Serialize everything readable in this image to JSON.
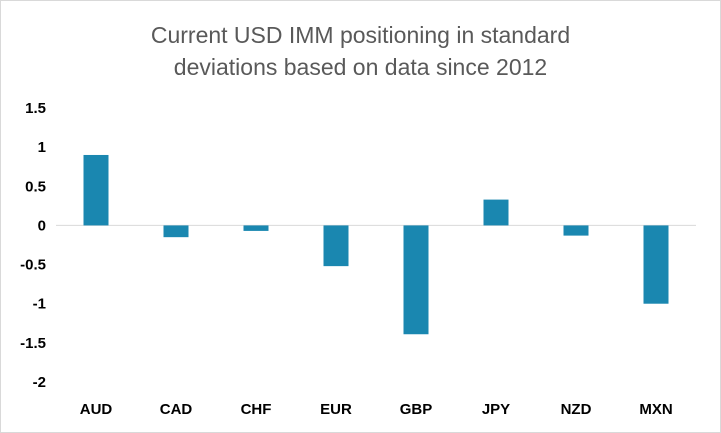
{
  "chart_data": {
    "type": "bar",
    "title_lines": [
      "Current USD IMM positioning in standard",
      "deviations based on data since 2012"
    ],
    "categories": [
      "AUD",
      "CAD",
      "CHF",
      "EUR",
      "GBP",
      "JPY",
      "NZD",
      "MXN"
    ],
    "values": [
      0.9,
      -0.15,
      -0.07,
      -0.52,
      -1.39,
      0.33,
      -0.13,
      -1.0
    ],
    "ylim": [
      -2,
      1.5
    ],
    "yticks": [
      "1.5",
      "1",
      "0.5",
      "0",
      "-0.5",
      "-1",
      "-1.5",
      "-2"
    ],
    "grid": false,
    "bar_color": "#1a87b0"
  }
}
